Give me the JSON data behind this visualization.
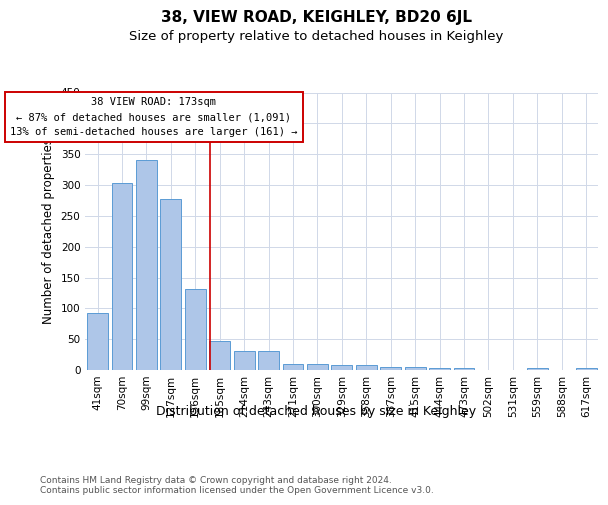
{
  "title": "38, VIEW ROAD, KEIGHLEY, BD20 6JL",
  "subtitle": "Size of property relative to detached houses in Keighley",
  "xlabel": "Distribution of detached houses by size in Keighley",
  "ylabel": "Number of detached properties",
  "footer_line1": "Contains HM Land Registry data © Crown copyright and database right 2024.",
  "footer_line2": "Contains public sector information licensed under the Open Government Licence v3.0.",
  "bin_labels": [
    "41sqm",
    "70sqm",
    "99sqm",
    "127sqm",
    "156sqm",
    "185sqm",
    "214sqm",
    "243sqm",
    "271sqm",
    "300sqm",
    "329sqm",
    "358sqm",
    "387sqm",
    "415sqm",
    "444sqm",
    "473sqm",
    "502sqm",
    "531sqm",
    "559sqm",
    "588sqm",
    "617sqm"
  ],
  "bar_heights": [
    93,
    304,
    340,
    278,
    132,
    47,
    31,
    31,
    10,
    10,
    8,
    8,
    5,
    5,
    3,
    3,
    0,
    0,
    3,
    0,
    3
  ],
  "bar_color": "#aec6e8",
  "bar_edge_color": "#5b9bd5",
  "grid_color": "#d0d8e8",
  "annotation_line1": "38 VIEW ROAD: 173sqm",
  "annotation_line2": "← 87% of detached houses are smaller (1,091)",
  "annotation_line3": "13% of semi-detached houses are larger (161) →",
  "annotation_box_color": "#ffffff",
  "annotation_box_edge": "#cc0000",
  "vline_color": "#cc0000",
  "ylim_max": 450,
  "yticks": [
    0,
    50,
    100,
    150,
    200,
    250,
    300,
    350,
    400,
    450
  ],
  "background_color": "#ffffff",
  "title_fontsize": 11,
  "subtitle_fontsize": 9.5,
  "ylabel_fontsize": 8.5,
  "xlabel_fontsize": 9,
  "tick_fontsize": 7.5,
  "footer_fontsize": 6.5,
  "ann_fontsize": 7.5
}
